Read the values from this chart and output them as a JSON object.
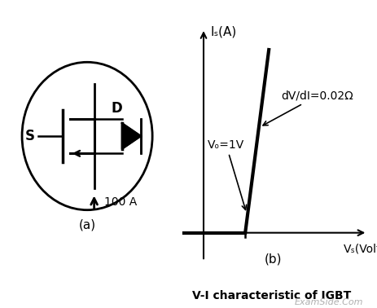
{
  "fig_width": 4.64,
  "fig_height": 3.78,
  "dpi": 100,
  "bg_color": "#ffffff",
  "title_b": "V-I characteristic of IGBT",
  "label_a": "(a)",
  "label_b": "(b)",
  "watermark": "ExamSide.Com",
  "current_label": "100 A",
  "y_axis_label": "Iₛ(A)",
  "x_axis_label": "Vₛ(Volt)",
  "annotation_slope": "dV/dI=0.02Ω",
  "annotation_vo": "Vₒ=1V",
  "S_label": "S",
  "D_label": "D"
}
